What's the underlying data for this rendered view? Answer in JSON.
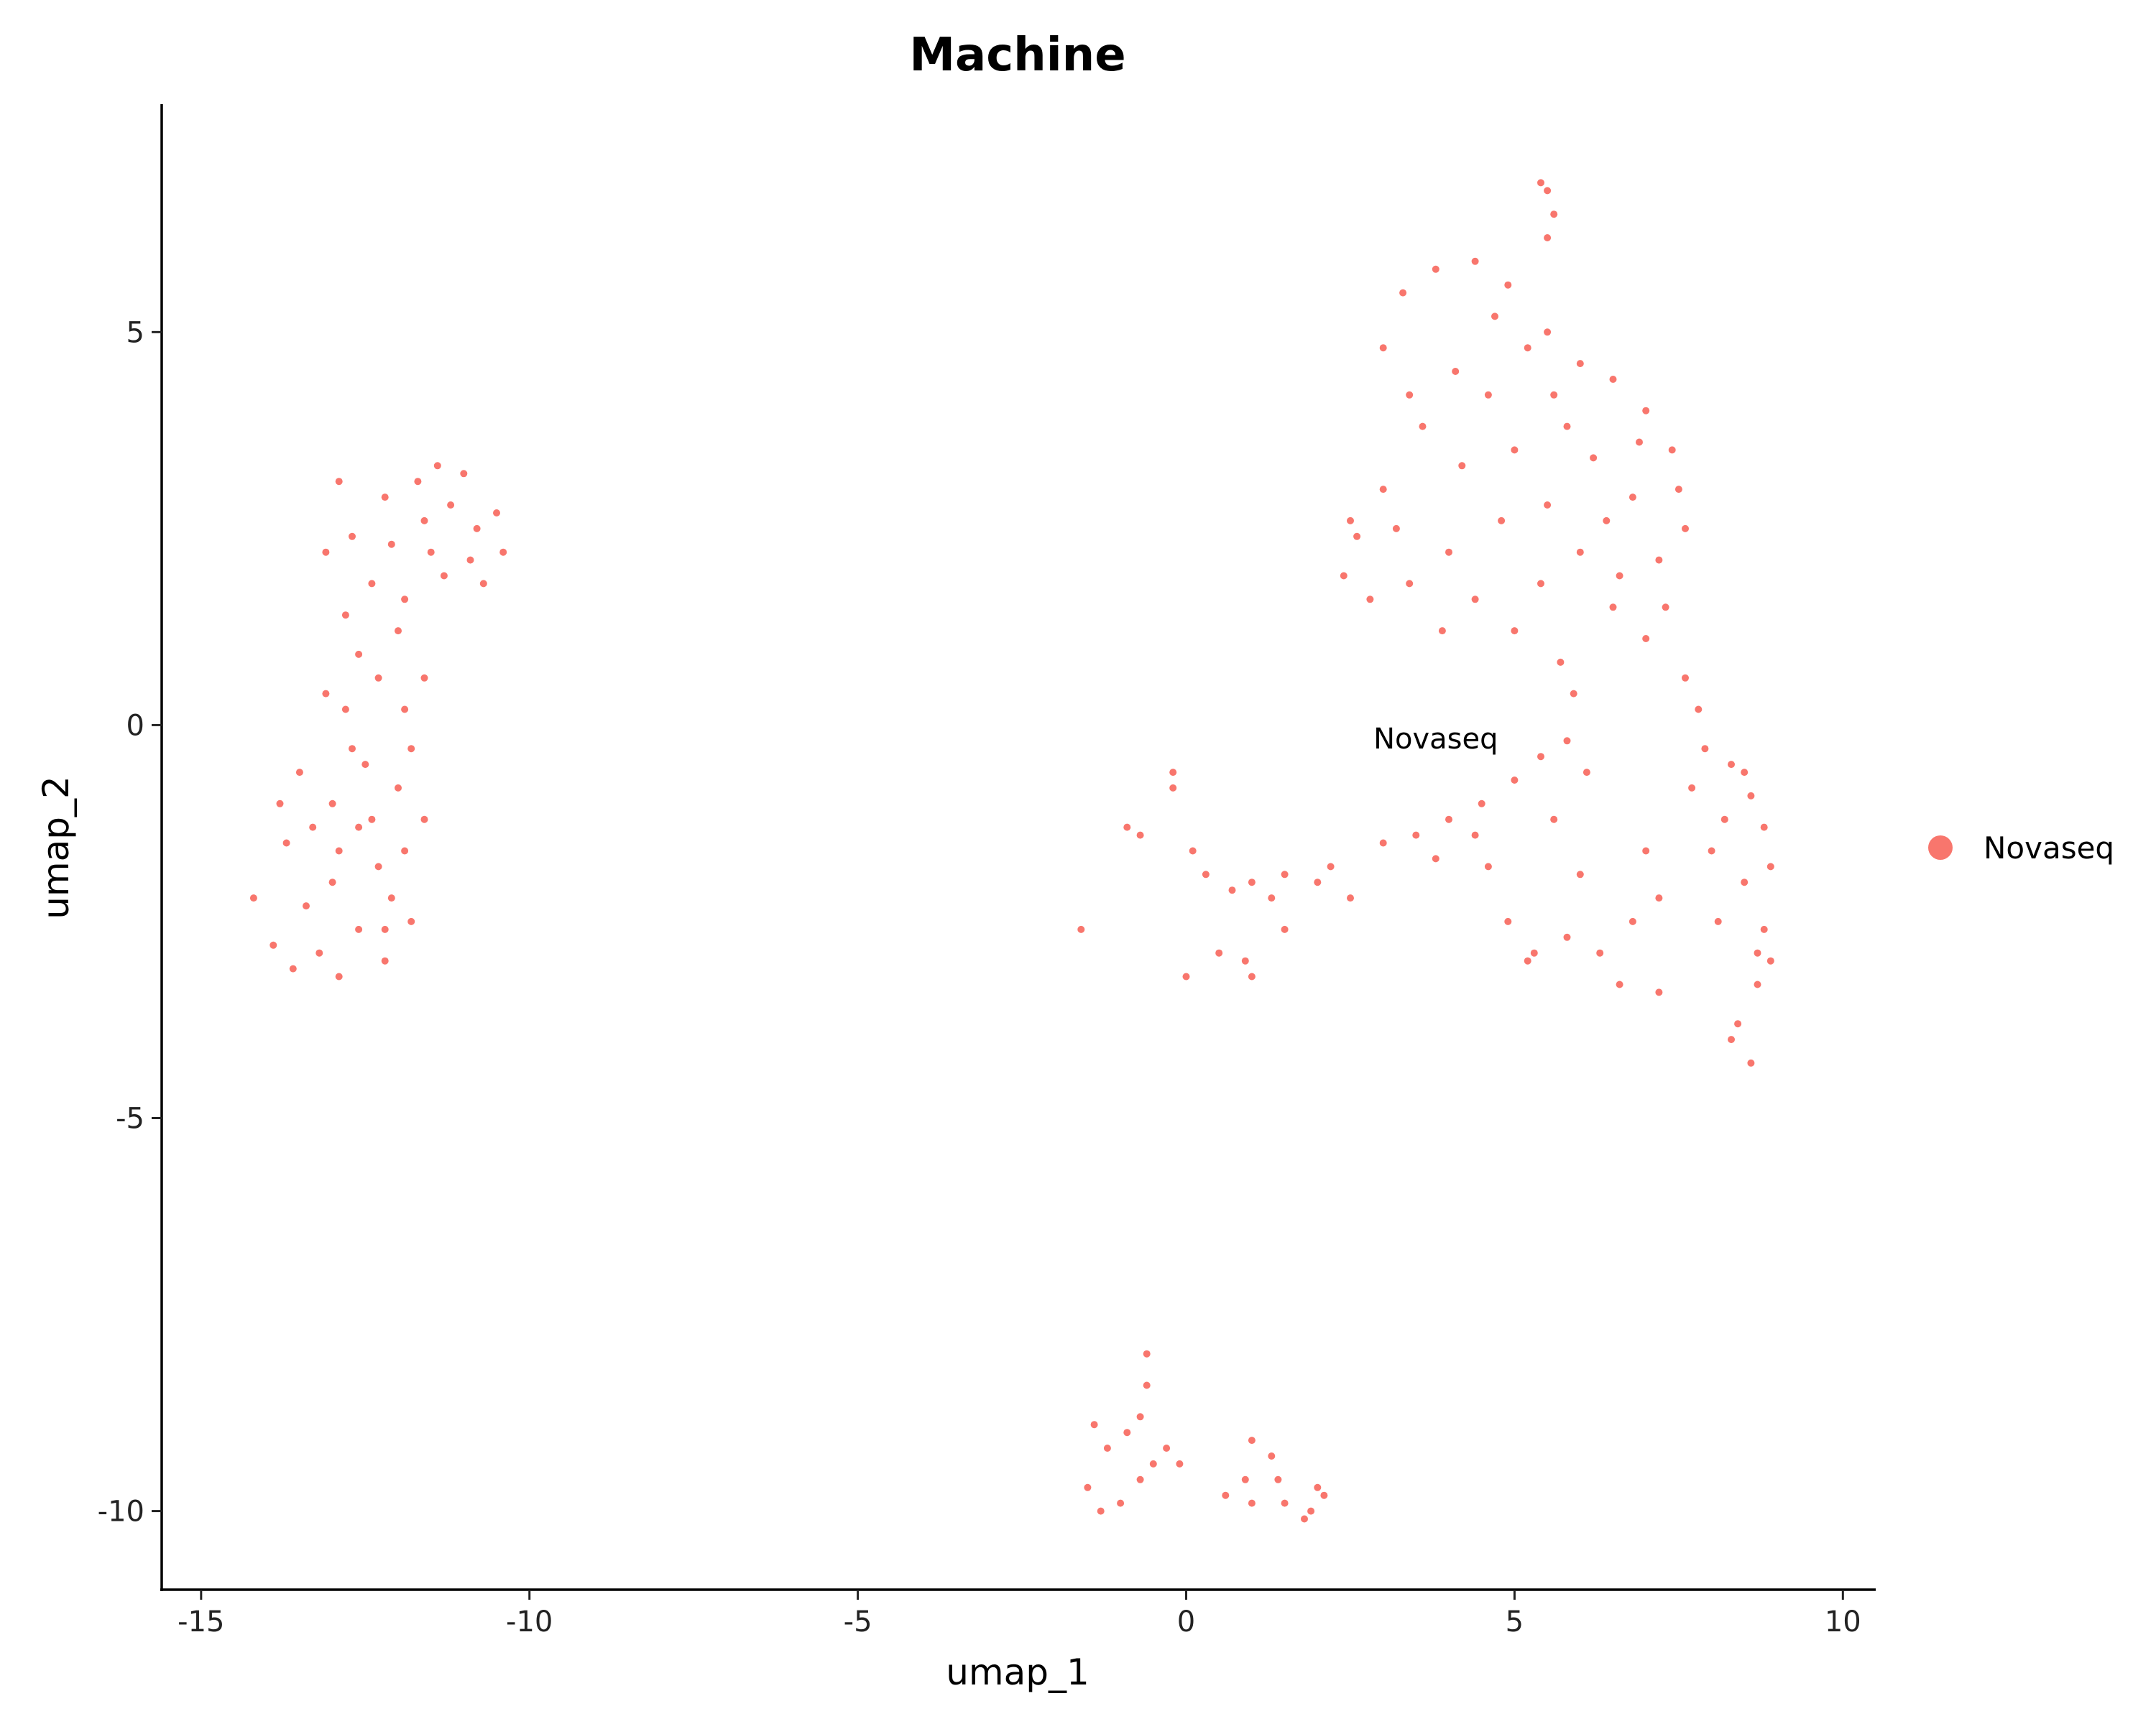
{
  "chart_data": {
    "type": "scatter",
    "title": "Machine",
    "xlabel": "umap_1",
    "ylabel": "umap_2",
    "xlim": [
      -15.6,
      10.5
    ],
    "ylim": [
      -11.0,
      7.9
    ],
    "xticks": [
      -15,
      -10,
      -5,
      0,
      5,
      10
    ],
    "xtick_labels": [
      "-15",
      "-10",
      "-5",
      "0",
      "5",
      "10"
    ],
    "yticks": [
      -10,
      -5,
      0,
      5
    ],
    "ytick_labels": [
      "-10",
      "-5",
      "0",
      "5"
    ],
    "grid": false,
    "legend": {
      "position": "right",
      "entries": [
        "Novaseq"
      ]
    },
    "annotation": {
      "text": "Novaseq",
      "x": 3.8,
      "y": -0.3
    },
    "series": [
      {
        "name": "Novaseq",
        "color": "#F8766D",
        "points": [
          [
            -13.7,
            -1.5
          ],
          [
            -13.4,
            -2.3
          ],
          [
            -13.0,
            -1.0
          ],
          [
            -12.7,
            -0.3
          ],
          [
            -12.3,
            -1.8
          ],
          [
            -12.0,
            -0.8
          ],
          [
            -13.9,
            -2.8
          ],
          [
            -13.2,
            -2.9
          ],
          [
            -12.6,
            -2.6
          ],
          [
            -12.1,
            -2.2
          ],
          [
            -13.5,
            -0.6
          ],
          [
            -12.9,
            -1.6
          ],
          [
            -12.4,
            -1.2
          ],
          [
            -11.9,
            -1.6
          ],
          [
            -12.8,
            0.2
          ],
          [
            -12.3,
            0.6
          ],
          [
            -13.1,
            0.4
          ],
          [
            -11.8,
            -0.3
          ],
          [
            -14.2,
            -2.2
          ],
          [
            -13.6,
            -3.1
          ],
          [
            -12.9,
            -3.2
          ],
          [
            -12.2,
            -3.0
          ],
          [
            -11.8,
            -2.5
          ],
          [
            -13.0,
            -2.0
          ],
          [
            -12.5,
            -0.5
          ],
          [
            -11.6,
            -1.2
          ],
          [
            -13.3,
            -1.3
          ],
          [
            -12.6,
            -1.3
          ],
          [
            -12.2,
            -2.6
          ],
          [
            -13.8,
            -1.0
          ],
          [
            -12.7,
            2.4
          ],
          [
            -12.2,
            2.9
          ],
          [
            -11.7,
            3.1
          ],
          [
            -11.2,
            2.8
          ],
          [
            -10.8,
            2.5
          ],
          [
            -10.4,
            2.2
          ],
          [
            -12.9,
            3.1
          ],
          [
            -11.5,
            2.2
          ],
          [
            -11.0,
            3.2
          ],
          [
            -10.5,
            2.7
          ],
          [
            -12.4,
            1.8
          ],
          [
            -11.9,
            1.6
          ],
          [
            -13.1,
            2.2
          ],
          [
            -11.3,
            1.9
          ],
          [
            -10.7,
            1.8
          ],
          [
            -12.1,
            2.3
          ],
          [
            -11.6,
            2.6
          ],
          [
            -10.9,
            2.1
          ],
          [
            -12.6,
            0.9
          ],
          [
            -12.0,
            1.2
          ],
          [
            -11.6,
            0.6
          ],
          [
            -11.9,
            0.2
          ],
          [
            -12.8,
            1.4
          ],
          [
            -11.4,
            3.3
          ],
          [
            3.3,
            5.5
          ],
          [
            3.8,
            5.8
          ],
          [
            4.4,
            5.9
          ],
          [
            4.9,
            5.6
          ],
          [
            5.5,
            5.0
          ],
          [
            6.0,
            4.6
          ],
          [
            6.5,
            4.4
          ],
          [
            7.0,
            4.0
          ],
          [
            7.4,
            3.5
          ],
          [
            7.6,
            2.5
          ],
          [
            7.3,
            1.5
          ],
          [
            7.0,
            1.1
          ],
          [
            6.5,
            1.5
          ],
          [
            6.0,
            2.2
          ],
          [
            5.5,
            2.8
          ],
          [
            5.0,
            3.5
          ],
          [
            4.6,
            4.2
          ],
          [
            4.1,
            4.5
          ],
          [
            3.6,
            3.8
          ],
          [
            3.0,
            3.0
          ],
          [
            2.6,
            2.4
          ],
          [
            2.4,
            1.9
          ],
          [
            2.8,
            1.6
          ],
          [
            3.4,
            1.8
          ],
          [
            4.0,
            2.2
          ],
          [
            4.4,
            1.6
          ],
          [
            5.0,
            1.2
          ],
          [
            5.4,
            1.8
          ],
          [
            6.2,
            3.4
          ],
          [
            6.8,
            2.9
          ],
          [
            7.2,
            2.1
          ],
          [
            3.0,
            4.8
          ],
          [
            3.4,
            4.2
          ],
          [
            5.2,
            4.8
          ],
          [
            5.8,
            3.8
          ],
          [
            6.4,
            2.6
          ],
          [
            3.9,
            1.2
          ],
          [
            4.8,
            2.6
          ],
          [
            7.5,
            3.0
          ],
          [
            2.5,
            2.6
          ],
          [
            6.6,
            1.9
          ],
          [
            5.6,
            4.2
          ],
          [
            4.2,
            3.3
          ],
          [
            6.9,
            3.6
          ],
          [
            3.2,
            2.5
          ],
          [
            4.7,
            5.2
          ],
          [
            5.5,
            6.8
          ],
          [
            5.6,
            6.5
          ],
          [
            5.5,
            6.2
          ],
          [
            5.4,
            6.9
          ],
          [
            7.6,
            0.6
          ],
          [
            7.9,
            -0.3
          ],
          [
            8.2,
            -1.2
          ],
          [
            8.5,
            -2.0
          ],
          [
            8.8,
            -2.6
          ],
          [
            8.9,
            -1.8
          ],
          [
            8.6,
            -0.9
          ],
          [
            8.3,
            -0.5
          ],
          [
            7.8,
            0.2
          ],
          [
            8.7,
            -3.3
          ],
          [
            8.4,
            -3.8
          ],
          [
            8.6,
            -4.3
          ],
          [
            8.9,
            -3.0
          ],
          [
            8.1,
            -2.5
          ],
          [
            8.0,
            -1.6
          ],
          [
            8.5,
            -0.6
          ],
          [
            8.7,
            -2.9
          ],
          [
            8.3,
            -4.0
          ],
          [
            8.8,
            -1.3
          ],
          [
            7.7,
            -0.8
          ],
          [
            0.3,
            -1.9
          ],
          [
            0.7,
            -2.1
          ],
          [
            1.0,
            -2.0
          ],
          [
            1.5,
            -1.9
          ],
          [
            2.0,
            -2.0
          ],
          [
            2.5,
            -2.2
          ],
          [
            3.0,
            -1.5
          ],
          [
            3.5,
            -1.4
          ],
          [
            4.0,
            -1.2
          ],
          [
            4.5,
            -1.0
          ],
          [
            5.0,
            -0.7
          ],
          [
            5.4,
            -0.4
          ],
          [
            4.6,
            -1.8
          ],
          [
            4.9,
            -2.5
          ],
          [
            5.3,
            -2.9
          ],
          [
            5.8,
            -2.7
          ],
          [
            6.3,
            -2.9
          ],
          [
            6.8,
            -2.5
          ],
          [
            7.2,
            -2.2
          ],
          [
            7.0,
            -1.6
          ],
          [
            6.0,
            -1.9
          ],
          [
            5.6,
            -1.2
          ],
          [
            4.4,
            -1.4
          ],
          [
            3.8,
            -1.7
          ],
          [
            6.6,
            -3.3
          ],
          [
            5.2,
            -3.0
          ],
          [
            7.2,
            -3.4
          ],
          [
            5.8,
            -0.2
          ],
          [
            5.9,
            0.4
          ],
          [
            5.7,
            0.8
          ],
          [
            6.1,
            -0.6
          ],
          [
            -0.2,
            -0.6
          ],
          [
            -0.2,
            -0.8
          ],
          [
            -0.9,
            -1.3
          ],
          [
            -0.7,
            -1.4
          ],
          [
            -1.6,
            -2.6
          ],
          [
            0.0,
            -3.2
          ],
          [
            0.9,
            -3.0
          ],
          [
            1.0,
            -3.2
          ],
          [
            1.5,
            -2.6
          ],
          [
            0.5,
            -2.9
          ],
          [
            0.1,
            -1.6
          ],
          [
            1.3,
            -2.2
          ],
          [
            2.2,
            -1.8
          ],
          [
            -1.5,
            -9.7
          ],
          [
            -1.3,
            -10.0
          ],
          [
            -1.0,
            -9.9
          ],
          [
            -0.7,
            -9.6
          ],
          [
            -0.5,
            -9.4
          ],
          [
            -0.9,
            -9.0
          ],
          [
            -1.2,
            -9.2
          ],
          [
            -0.7,
            -8.8
          ],
          [
            -0.6,
            -8.4
          ],
          [
            -0.6,
            -8.0
          ],
          [
            -0.3,
            -9.2
          ],
          [
            -0.1,
            -9.4
          ],
          [
            -1.4,
            -8.9
          ],
          [
            0.6,
            -9.8
          ],
          [
            1.0,
            -9.9
          ],
          [
            1.5,
            -9.9
          ],
          [
            1.8,
            -10.1
          ],
          [
            2.1,
            -9.8
          ],
          [
            1.9,
            -10.0
          ],
          [
            1.3,
            -9.3
          ],
          [
            1.0,
            -9.1
          ],
          [
            1.4,
            -9.6
          ],
          [
            0.9,
            -9.6
          ],
          [
            2.0,
            -9.7
          ]
        ]
      }
    ]
  }
}
